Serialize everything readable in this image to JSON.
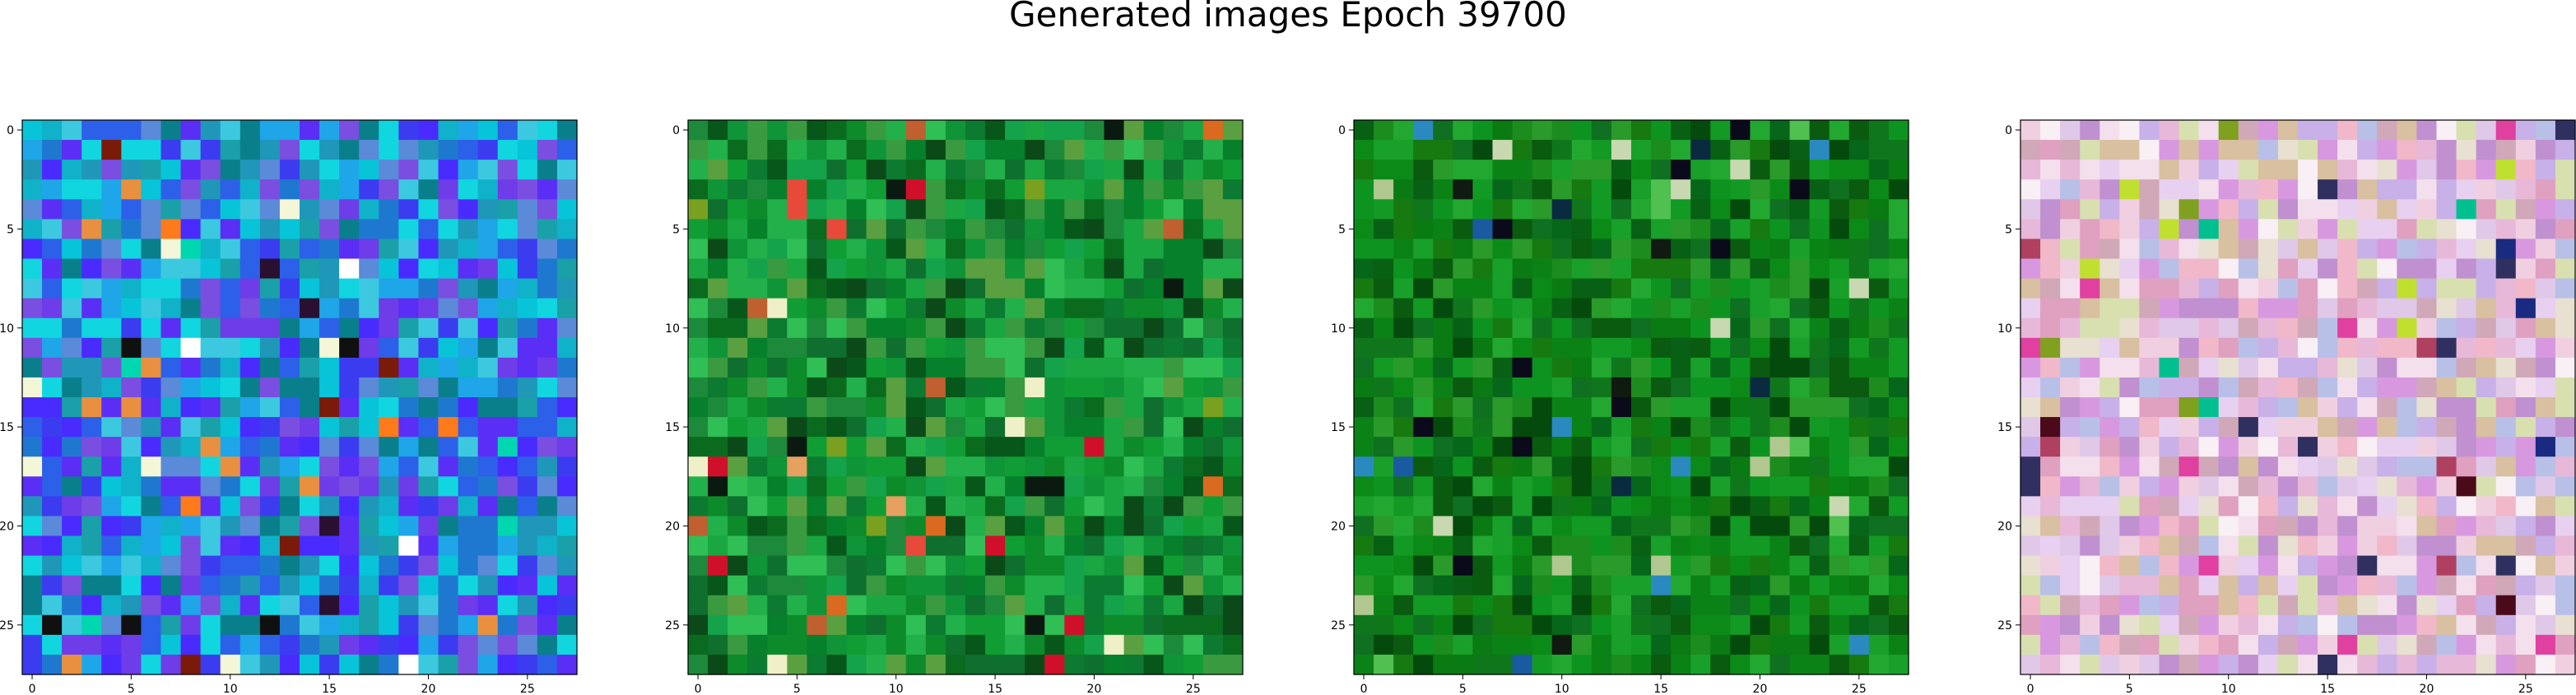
{
  "figure": {
    "title": "Generated images Epoch 39700"
  },
  "chart_data": [
    {
      "type": "heatmap",
      "render": "rgb-image",
      "grid_size": [
        28,
        28
      ],
      "palette_name": "blue-cyan-purple",
      "palette": [
        "#0a7f8c",
        "#1f97b8",
        "#1aa0a8",
        "#0fb2c9",
        "#08c4d8",
        "#3cc9e0",
        "#11d6e0",
        "#1f78d0",
        "#2c60e8",
        "#3b3cf0",
        "#4a2bff",
        "#5b2ef5",
        "#6e3ce8",
        "#7a4ee0",
        "#5a8ad8",
        "#1ea6e8"
      ],
      "highlight_colors": [
        "#ff7a1a",
        "#f4f6d8",
        "#ffffff",
        "#7a1a08",
        "#e89040",
        "#101010",
        "#2a1030",
        "#00d6b0"
      ],
      "xticks": [
        0,
        5,
        10,
        15,
        20,
        25
      ],
      "yticks": [
        0,
        5,
        10,
        15,
        20,
        25
      ],
      "xlim": [
        -0.5,
        27.5
      ],
      "ylim": [
        27.5,
        -0.5
      ]
    },
    {
      "type": "heatmap",
      "render": "rgb-image",
      "grid_size": [
        28,
        28
      ],
      "palette_name": "green",
      "palette": [
        "#0a6b1e",
        "#0d8a2a",
        "#109e34",
        "#0c7a30",
        "#1aa640",
        "#07561a",
        "#22b04a",
        "#0f9438",
        "#3a9a40",
        "#1c8a3a",
        "#0b4a18",
        "#2fbf55",
        "#06802a",
        "#14a24a",
        "#5aa040",
        "#0e6f2e"
      ],
      "highlight_colors": [
        "#e84a3a",
        "#d96a20",
        "#f0f0c8",
        "#d0102a",
        "#e6a060",
        "#0a1a10",
        "#7aa020",
        "#c06030"
      ],
      "xticks": [
        0,
        5,
        10,
        15,
        20,
        25
      ],
      "yticks": [
        0,
        5,
        10,
        15,
        20,
        25
      ],
      "xlim": [
        -0.5,
        27.5
      ],
      "ylim": [
        27.5,
        -0.5
      ]
    },
    {
      "type": "heatmap",
      "render": "rgb-image",
      "grid_size": [
        28,
        28
      ],
      "palette_name": "dark-green",
      "palette": [
        "#0a7a12",
        "#0c8a18",
        "#06661a",
        "#129a24",
        "#0a5a10",
        "#18a02a",
        "#0e7020",
        "#1c8c1e",
        "#044a0c",
        "#22a830",
        "#0b8216",
        "#167a10",
        "#0d9420",
        "#086014",
        "#2a9a2a",
        "#10761c"
      ],
      "highlight_colors": [
        "#0a0a1a",
        "#1a5aa0",
        "#c8d8b0",
        "#0a2a40",
        "#2a8ac0",
        "#101a10",
        "#50c050",
        "#b0c890"
      ],
      "xticks": [
        0,
        5,
        10,
        15,
        20,
        25
      ],
      "yticks": [
        0,
        5,
        10,
        15,
        20,
        25
      ],
      "xlim": [
        -0.5,
        27.5
      ],
      "ylim": [
        27.5,
        -0.5
      ]
    },
    {
      "type": "heatmap",
      "render": "rgb-image",
      "grid_size": [
        28,
        28
      ],
      "palette_name": "pastel-pink",
      "palette": [
        "#e8b8d8",
        "#d898e0",
        "#f0d0e0",
        "#c8b0e8",
        "#e0a0c0",
        "#f4e0ec",
        "#d8c0a0",
        "#e8d0f0",
        "#c090d0",
        "#f8f0f4",
        "#d0a8b8",
        "#e0c8e8",
        "#b8c0e8",
        "#d8e0b0",
        "#f0b8c8",
        "#e8e0d0"
      ],
      "highlight_colors": [
        "#4a0a1a",
        "#c0e030",
        "#1a2a80",
        "#80a020",
        "#e040a0",
        "#303060",
        "#b04060",
        "#00c090"
      ],
      "xticks": [
        0,
        5,
        10,
        15,
        20,
        25
      ],
      "yticks": [
        0,
        5,
        10,
        15,
        20,
        25
      ],
      "xlim": [
        -0.5,
        27.5
      ],
      "ylim": [
        27.5,
        -0.5
      ]
    }
  ]
}
